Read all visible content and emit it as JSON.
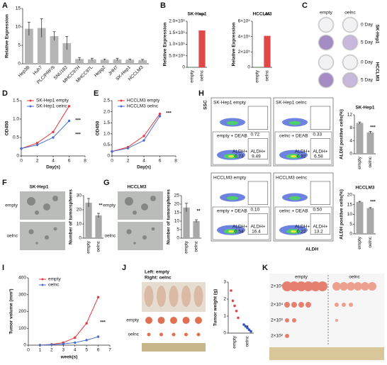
{
  "panels": [
    "A",
    "B",
    "C",
    "D",
    "E",
    "F",
    "G",
    "H",
    "I",
    "J",
    "K"
  ],
  "chart_data": [
    {
      "type": "bar",
      "ylabel": "Relative Expression",
      "categories": [
        "Hep3B",
        "Huh7",
        "PLC/PRF/5",
        "SNU182",
        "MHCC97H",
        "MHCC97L",
        "Hepg2",
        "JHH7",
        "SK-Hep1",
        "HCCLM3"
      ],
      "values": [
        9.5,
        9.7,
        7.5,
        5.6,
        1.3,
        1.2,
        1.1,
        1.2,
        1.1,
        1.0
      ],
      "errors": [
        1.8,
        2.5,
        1.2,
        1.8,
        0.4,
        0.3,
        0.2,
        0.3,
        0.2,
        0.2
      ],
      "color": "#b5b5b5",
      "ylim": [
        0,
        15
      ],
      "yticks": [
        0,
        5,
        10,
        15
      ]
    },
    {
      "type": "bar",
      "title": "SK-Hep1",
      "ylabel": "Relative Expression",
      "categories": [
        "empty",
        "oelnc"
      ],
      "values": [
        1,
        1600000
      ],
      "colors": [
        "#3a9a3a",
        "#e04848"
      ],
      "ylim": [
        0,
        2000000
      ],
      "yticks": [
        0,
        {
          "value": 500000,
          "label": "5.0×10⁵"
        },
        {
          "value": 1000000,
          "label": "1.0×10⁶"
        },
        {
          "value": 1500000,
          "label": "1.5×10⁶"
        },
        {
          "value": 2000000,
          "label": "2.0×10⁶"
        }
      ],
      "annotations": [
        "***"
      ]
    },
    {
      "type": "bar",
      "title": "HCCLM3",
      "ylabel": "Relative Expression",
      "categories": [
        "empty",
        "oelnc"
      ],
      "values": [
        1,
        410000
      ],
      "colors": [
        "#3a9a3a",
        "#e04848"
      ],
      "ylim": [
        0,
        600000
      ],
      "yticks": [
        0,
        {
          "value": 200000,
          "label": "2×10⁵"
        },
        {
          "value": 400000,
          "label": "4×10⁵"
        },
        {
          "value": 600000,
          "label": "6×10⁵"
        }
      ],
      "annotations": [
        "***"
      ]
    },
    {
      "type": "line",
      "xlabel": "Day(s)",
      "ylabel": "OD450",
      "x": [
        0,
        2,
        4,
        6
      ],
      "series": [
        {
          "name": "SK-Hep1 empty",
          "color": "#e8383d",
          "values": [
            0.2,
            0.35,
            0.65,
            1.35
          ]
        },
        {
          "name": "SK-Hep1 oelnc",
          "color": "#4a6fd0",
          "values": [
            0.2,
            0.3,
            0.5,
            0.95
          ]
        }
      ],
      "xlim": [
        0,
        8
      ],
      "xticks": [
        0,
        2,
        4,
        6,
        8
      ],
      "ylim": [
        0,
        1.5
      ],
      "yticks": [
        0,
        0.5,
        {
          "value": 1,
          "label": "1.0"
        },
        1.5
      ],
      "annotations": [
        "***",
        "***"
      ]
    },
    {
      "type": "line",
      "xlabel": "Day(s)",
      "ylabel": "OD450",
      "x": [
        0,
        2,
        4,
        6
      ],
      "series": [
        {
          "name": "HCCLM3 empty",
          "color": "#e8383d",
          "values": [
            0.2,
            0.4,
            0.9,
            1.9
          ]
        },
        {
          "name": "HCCLM3 oelnc",
          "color": "#4a6fd0",
          "values": [
            0.2,
            0.35,
            0.7,
            1.8
          ]
        }
      ],
      "xlim": [
        0,
        8
      ],
      "xticks": [
        0,
        2,
        4,
        6,
        8
      ],
      "ylim": [
        0,
        2.5
      ],
      "yticks": [
        0,
        0.5,
        {
          "value": 1,
          "label": "1.0"
        },
        1.5,
        {
          "value": 2,
          "label": "2.0"
        },
        2.5
      ],
      "annotations": [
        "***"
      ]
    },
    {
      "type": "bar",
      "ylabel": "Number of tumorspheres",
      "categories": [
        "empty",
        "oelnc"
      ],
      "values": [
        25,
        16
      ],
      "errors": [
        3,
        1.5
      ],
      "color": "#a8a8a8",
      "ylim": [
        0,
        30
      ],
      "yticks": [
        0,
        10,
        20,
        30
      ],
      "annotations": [
        "**"
      ]
    },
    {
      "type": "bar",
      "ylabel": "Number of tumorspheres",
      "categories": [
        "empty",
        "oelnc"
      ],
      "values": [
        18,
        10
      ],
      "errors": [
        2.5,
        0.8
      ],
      "color": "#a8a8a8",
      "ylim": [
        0,
        25
      ],
      "yticks": [
        0,
        5,
        10,
        15,
        20,
        25
      ],
      "annotations": [
        "**"
      ]
    },
    {
      "type": "bar",
      "title": "SK-Hep1",
      "ylabel": "ALDH positive cells(%)",
      "categories": [
        "empty",
        "oelnc"
      ],
      "values": [
        9.5,
        6.6
      ],
      "errors": [
        0.3,
        0.3
      ],
      "color": "#a8a8a8",
      "ylim": [
        0,
        12
      ],
      "yticks": [
        0,
        4,
        8,
        12
      ],
      "annotations": [
        "***"
      ]
    },
    {
      "type": "bar",
      "title": "HCCLM3",
      "ylabel": "ALDH positive cells(%)",
      "categories": [
        "empty",
        "oelnc"
      ],
      "values": [
        16.4,
        13.2
      ],
      "errors": [
        0.3,
        0.3
      ],
      "color": "#a8a8a8",
      "ylim": [
        0,
        20
      ],
      "yticks": [
        0,
        5,
        10,
        15,
        20
      ],
      "annotations": [
        "***"
      ]
    },
    {
      "type": "line",
      "xlabel": "week(s)",
      "ylabel": "Tumor volume (mm³)",
      "x": [
        1,
        2,
        3,
        4,
        5,
        6
      ],
      "series": [
        {
          "name": "empty",
          "color": "#e8383d",
          "values": [
            0,
            5,
            15,
            45,
            130,
            285
          ]
        },
        {
          "name": "oelnc",
          "color": "#4a6fd0",
          "values": [
            0,
            3,
            8,
            15,
            30,
            50
          ]
        }
      ],
      "xlim": [
        0,
        7
      ],
      "xticks": [
        0,
        1,
        2,
        3,
        4,
        5,
        6,
        7
      ],
      "ylim": [
        0,
        400
      ],
      "yticks": [
        0,
        100,
        200,
        300,
        400
      ],
      "annotations": [
        "***"
      ]
    },
    {
      "type": "scatter",
      "ylabel": "Tumor weight (g)",
      "categories": [
        "empty",
        "oelnc"
      ],
      "points": [
        [
          2.5,
          1.9,
          1.6,
          1.3,
          0.9
        ],
        [
          0.5,
          0.4,
          0.3,
          0.2,
          0.1
        ]
      ],
      "colors": [
        "#e04848",
        "#3050c0"
      ],
      "ylim": [
        0,
        3
      ],
      "yticks": [
        0,
        1,
        2,
        3
      ],
      "annotations": [
        "**"
      ]
    }
  ],
  "images": {
    "C": {
      "columns": [
        "empty",
        "oelnc"
      ],
      "rows": [
        "0 Day",
        "5 Day",
        "0 Day",
        "5 Day"
      ],
      "groups": [
        "SK-Hep1",
        "HCCLM3"
      ]
    },
    "F": {
      "title": "SK-Hep1",
      "rows": [
        "empty",
        "oelnc"
      ]
    },
    "G": {
      "title": "HCCLM3",
      "rows": [
        "empty",
        "oelnc"
      ]
    },
    "H": {
      "x_label": "ALDH",
      "y_label": "SSC",
      "plots": [
        {
          "title": "SK-Hep1 empty",
          "deab": "empty + DEAB",
          "gate": "0.72",
          "left_label": "ALDH+",
          "left_value": "0.73",
          "right_label": "ALDH+",
          "right_value": "9.49"
        },
        {
          "title": "SK-Hep1 oelnc",
          "deab": "oelnc + DEAB",
          "gate": "0.33",
          "left_label": "ALDH+",
          "left_value": "0.92",
          "right_label": "ALDH+",
          "right_value": "6.58"
        },
        {
          "title": "HCCLM3 empty",
          "deab": "empty + DEAB",
          "gate": "0.10",
          "left_label": "ALDH+",
          "left_value": "0.54",
          "right_label": "ALDH+",
          "right_value": "16.4"
        },
        {
          "title": "HCCLM3 oelnc",
          "deab": "oelnc + DEAB",
          "gate": "0.50",
          "left_label": "ALDH+",
          "left_value": "0.22",
          "right_label": "ALDH+",
          "right_value": "13.2"
        }
      ]
    },
    "J": {
      "caption": [
        "Left: empty",
        "Right: oelnc"
      ],
      "rows": [
        "empty",
        "oelnc"
      ]
    },
    "K": {
      "columns": [
        "empty",
        "oelnc"
      ],
      "rows": [
        "2×10⁵",
        "2×10⁴",
        "2×10³",
        "2×10²"
      ]
    }
  }
}
